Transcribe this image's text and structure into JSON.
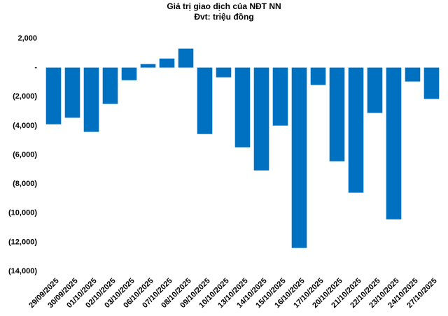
{
  "chart_data": {
    "type": "bar",
    "title": "Giá trị giao dịch của NĐT NN",
    "subtitle": "Đvt: triệu đồng",
    "categories": [
      "29/09/2025",
      "30/09/2025",
      "01/10/2025",
      "02/10/2025",
      "03/10/2025",
      "06/10/2025",
      "07/10/2025",
      "08/10/2025",
      "09/10/2025",
      "10/10/2025",
      "13/10/2025",
      "14/10/2025",
      "15/10/2025",
      "16/10/2025",
      "17/10/2025",
      "20/10/2025",
      "21/10/2025",
      "22/10/2025",
      "23/10/2025",
      "24/10/2025",
      "27/10/2025"
    ],
    "values": [
      -3900,
      -3450,
      -4420,
      -2500,
      -870,
      240,
      620,
      1300,
      -4570,
      -670,
      -5480,
      -7070,
      -3990,
      -12400,
      -1200,
      -6440,
      -8600,
      -3120,
      -10430,
      -960,
      -2160
    ],
    "color": "#0070c0",
    "ylim": [
      -14000,
      2000
    ],
    "yticks": [
      {
        "value": 2000,
        "label": "2,000"
      },
      {
        "value": 0,
        "label": "-"
      },
      {
        "value": -2000,
        "label": "(2,000)"
      },
      {
        "value": -4000,
        "label": "(4,000)"
      },
      {
        "value": -6000,
        "label": "(6,000)"
      },
      {
        "value": -8000,
        "label": "(8,000)"
      },
      {
        "value": -10000,
        "label": "(10,000)"
      },
      {
        "value": -12000,
        "label": "(12,000)"
      },
      {
        "value": -14000,
        "label": "(14,000)"
      }
    ],
    "grid": false
  }
}
